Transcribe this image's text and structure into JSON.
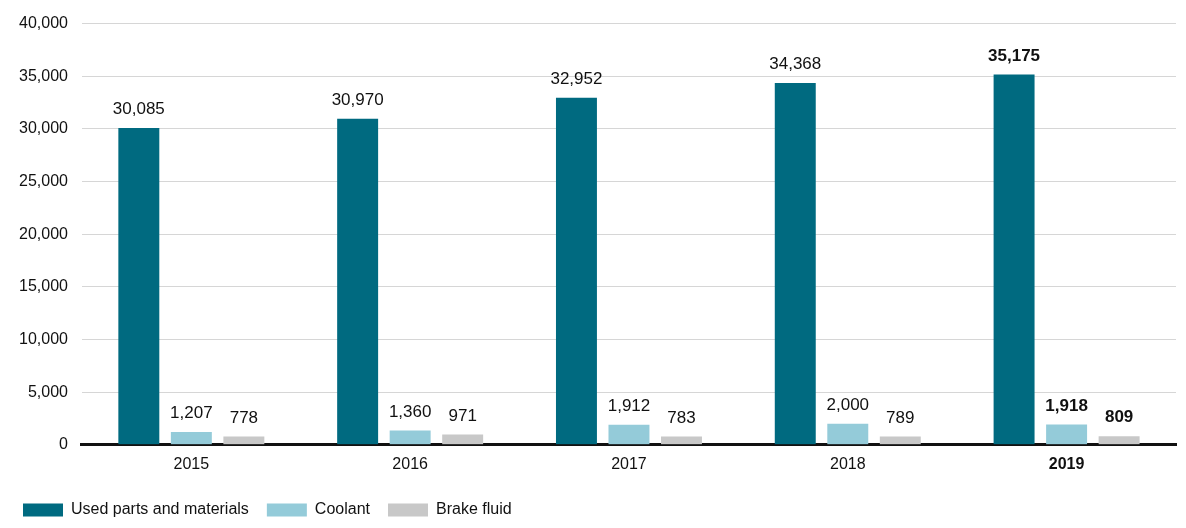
{
  "chart_data": {
    "type": "bar",
    "categories": [
      "2015",
      "2016",
      "2017",
      "2018",
      "2019"
    ],
    "series": [
      {
        "name": "Used parts and materials",
        "color": "#006a80",
        "values": [
          30085,
          30970,
          32952,
          34368,
          35175
        ],
        "value_labels": [
          "30,085",
          "30,970",
          "32,952",
          "34,368",
          "35,175"
        ]
      },
      {
        "name": "Coolant",
        "color": "#94cbd9",
        "values": [
          1207,
          1360,
          1912,
          2000,
          1918
        ],
        "value_labels": [
          "1,207",
          "1,360",
          "1,912",
          "2,000",
          "1,918"
        ]
      },
      {
        "name": "Brake fluid",
        "color": "#c8c8c8",
        "values": [
          778,
          971,
          783,
          789,
          809
        ],
        "value_labels": [
          "778",
          "971",
          "783",
          "789",
          "809"
        ]
      }
    ],
    "ylim": [
      0,
      40000
    ],
    "yticks": [
      0,
      {
        "value": 5000,
        "label": "5,000"
      },
      {
        "value": 10000,
        "label": "10,000"
      },
      {
        "value": 15000,
        "label": "15,000"
      },
      {
        "value": 20000,
        "label": "20,000"
      },
      {
        "value": 25000,
        "label": "25,000"
      },
      {
        "value": 30000,
        "label": "30,000"
      },
      {
        "value": 35000,
        "label": "35,000"
      },
      {
        "value": 40000,
        "label": "40,000"
      }
    ],
    "grid": "y",
    "legend": "bottom"
  }
}
